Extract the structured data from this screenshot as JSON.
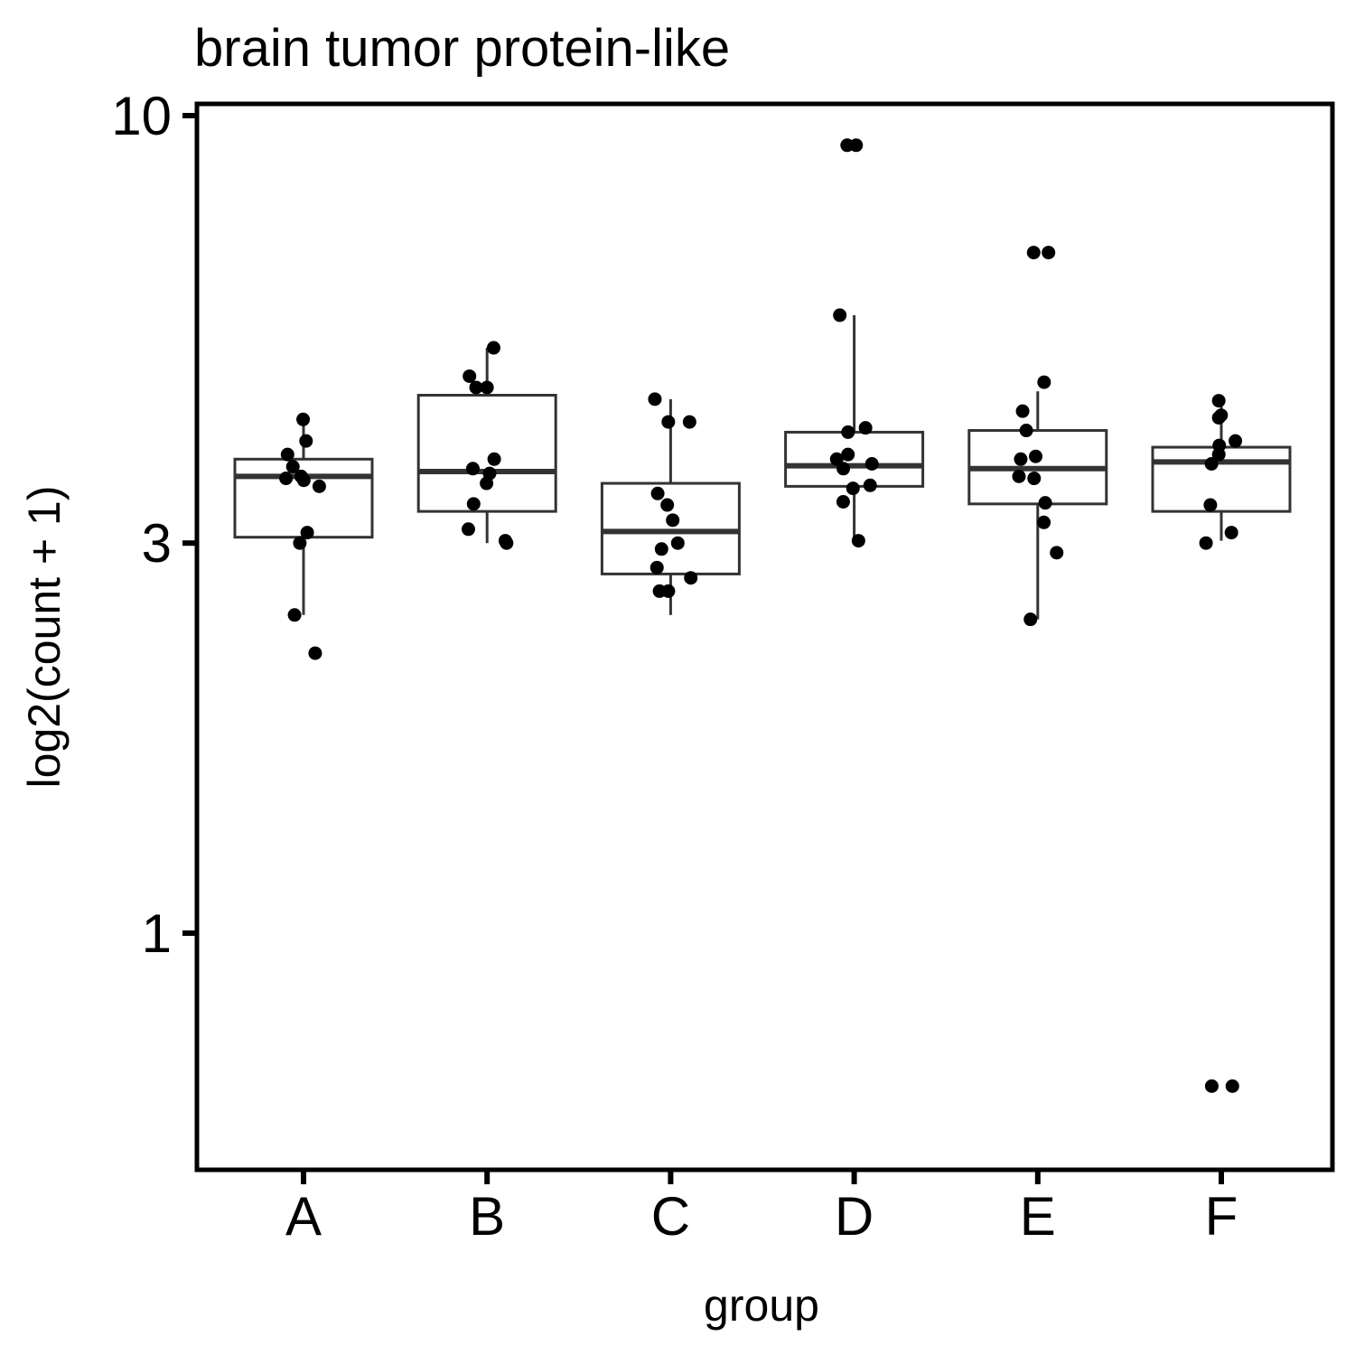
{
  "chart_data": {
    "type": "box",
    "title": "brain tumor protein-like",
    "xlabel": "group",
    "ylabel": "log2(count + 1)",
    "yscale": "log",
    "ylim": [
      0.6,
      10.5
    ],
    "yticks": [
      1,
      3,
      10
    ],
    "ytick_labels": [
      "1",
      "3",
      "10"
    ],
    "categories": [
      "A",
      "B",
      "C",
      "D",
      "E",
      "F"
    ],
    "grid": false,
    "legend": "none",
    "box_color": "#333333",
    "point_color": "#000000",
    "boxes": [
      {
        "group": "A",
        "q1": 3.05,
        "median": 3.62,
        "q3": 3.8,
        "whisker_low": 2.45,
        "whisker_high": 4.2
      },
      {
        "group": "B",
        "q1": 3.28,
        "median": 3.67,
        "q3": 4.55,
        "whisker_low": 3.0,
        "whisker_high": 5.2
      },
      {
        "group": "C",
        "q1": 2.75,
        "median": 3.1,
        "q3": 3.55,
        "whisker_low": 2.45,
        "whisker_high": 4.5
      },
      {
        "group": "D",
        "q1": 3.52,
        "median": 3.73,
        "q3": 4.1,
        "whisker_low": 3.0,
        "whisker_high": 5.7
      },
      {
        "group": "E",
        "q1": 3.35,
        "median": 3.7,
        "q3": 4.12,
        "whisker_low": 2.42,
        "whisker_high": 4.6
      },
      {
        "group": "F",
        "q1": 3.28,
        "median": 3.77,
        "q3": 3.93,
        "whisker_low": 3.02,
        "whisker_high": 4.45
      }
    ],
    "points": [
      {
        "group": "A",
        "values": [
          4.25,
          4.0,
          3.85,
          3.72,
          3.62,
          3.58,
          3.6,
          3.52,
          3.09,
          3.0,
          2.45,
          2.2
        ]
      },
      {
        "group": "B",
        "values": [
          5.2,
          4.8,
          4.65,
          4.65,
          3.8,
          3.7,
          3.65,
          3.55,
          3.35,
          3.12,
          3.02,
          3.0
        ]
      },
      {
        "group": "C",
        "values": [
          4.5,
          4.22,
          4.22,
          3.45,
          3.34,
          3.2,
          3.0,
          2.95,
          2.8,
          2.72,
          2.62,
          2.62
        ]
      },
      {
        "group": "D",
        "values": [
          9.2,
          9.2,
          5.7,
          4.15,
          4.1,
          3.85,
          3.8,
          3.75,
          3.7,
          3.53,
          3.5,
          3.37,
          3.02
        ]
      },
      {
        "group": "E",
        "values": [
          6.8,
          6.8,
          4.72,
          4.35,
          4.12,
          3.83,
          3.8,
          3.62,
          3.6,
          3.36,
          3.18,
          2.92,
          2.42
        ]
      },
      {
        "group": "F",
        "values": [
          4.48,
          4.3,
          4.27,
          4.0,
          3.95,
          3.85,
          3.75,
          3.34,
          3.09,
          3.0,
          0.65,
          0.65
        ]
      }
    ]
  }
}
